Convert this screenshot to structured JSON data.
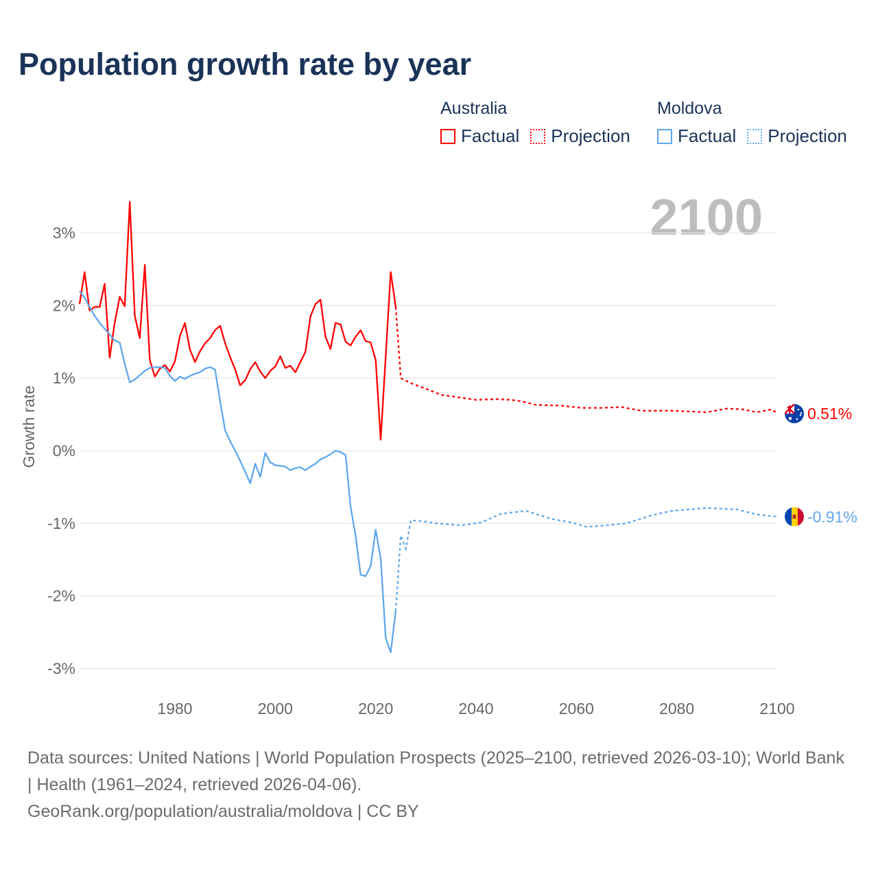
{
  "chart_data": {
    "type": "line",
    "title": "Population growth rate by year",
    "ylabel": "Growth rate",
    "xlabel": "",
    "xlim": [
      1961,
      2100
    ],
    "ylim": [
      -3.4,
      3.5
    ],
    "grid": true,
    "current_year_label": "2100",
    "x_ticks": [
      1980,
      2000,
      2020,
      2040,
      2060,
      2080,
      2100
    ],
    "x_tick_labels": [
      "1980",
      "2000",
      "2020",
      "2040",
      "2060",
      "2080",
      "2100"
    ],
    "y_ticks": [
      3,
      2,
      1,
      0,
      -1,
      -2,
      -3
    ],
    "y_tick_labels": [
      "3%",
      "2%",
      "1%",
      "0%",
      "-1%",
      "-2%",
      "-3%"
    ],
    "legend": {
      "placement": "top-right",
      "groups": [
        {
          "country": "Australia",
          "factual": "Factual",
          "projection": "Projection"
        },
        {
          "country": "Moldova",
          "factual": "Factual",
          "projection": "Projection"
        }
      ]
    },
    "series": [
      {
        "name": "Australia",
        "color": "#ff0000",
        "end_label": "0.51%",
        "factual_start_year": 1961,
        "factual": [
          2.02,
          2.46,
          1.93,
          1.98,
          1.98,
          2.3,
          1.28,
          1.76,
          2.12,
          1.99,
          3.43,
          1.86,
          1.55,
          2.56,
          1.25,
          1.02,
          1.13,
          1.18,
          1.09,
          1.23,
          1.58,
          1.76,
          1.39,
          1.22,
          1.37,
          1.48,
          1.55,
          1.66,
          1.72,
          1.48,
          1.29,
          1.12,
          0.9,
          0.97,
          1.12,
          1.22,
          1.09,
          1.0,
          1.1,
          1.16,
          1.3,
          1.14,
          1.17,
          1.08,
          1.22,
          1.36,
          1.85,
          2.02,
          2.08,
          1.57,
          1.4,
          1.76,
          1.74,
          1.5,
          1.45,
          1.57,
          1.66,
          1.51,
          1.49,
          1.25,
          0.15,
          1.3,
          2.46,
          1.98
        ],
        "projection": [
          [
            2024,
            1.98
          ],
          [
            2025,
            1.0
          ],
          [
            2027,
            0.93
          ],
          [
            2029,
            0.88
          ],
          [
            2033,
            0.77
          ],
          [
            2037,
            0.73
          ],
          [
            2040,
            0.7
          ],
          [
            2044,
            0.71
          ],
          [
            2047,
            0.7
          ],
          [
            2049,
            0.68
          ],
          [
            2052,
            0.63
          ],
          [
            2057,
            0.62
          ],
          [
            2061,
            0.59
          ],
          [
            2065,
            0.59
          ],
          [
            2069,
            0.6
          ],
          [
            2073,
            0.55
          ],
          [
            2079,
            0.55
          ],
          [
            2086,
            0.53
          ],
          [
            2090,
            0.58
          ],
          [
            2093,
            0.57
          ],
          [
            2096,
            0.53
          ],
          [
            2099,
            0.57
          ],
          [
            2100,
            0.51
          ]
        ]
      },
      {
        "name": "Moldova",
        "color": "#5ea7ec",
        "end_label": "-0.91%",
        "factual_start_year": 1961,
        "factual": [
          2.2,
          2.11,
          1.98,
          1.86,
          1.76,
          1.68,
          1.6,
          1.52,
          1.49,
          1.2,
          0.94,
          0.98,
          1.04,
          1.1,
          1.14,
          1.15,
          1.15,
          1.14,
          1.03,
          0.96,
          1.02,
          0.99,
          1.03,
          1.06,
          1.08,
          1.13,
          1.15,
          1.12,
          0.68,
          0.28,
          0.13,
          0.0,
          -0.14,
          -0.29,
          -0.45,
          -0.18,
          -0.36,
          -0.03,
          -0.16,
          -0.2,
          -0.21,
          -0.22,
          -0.27,
          -0.24,
          -0.23,
          -0.27,
          -0.22,
          -0.18,
          -0.12,
          -0.09,
          -0.05,
          0.0,
          -0.02,
          -0.06,
          -0.77,
          -1.17,
          -1.71,
          -1.73,
          -1.59,
          -1.09,
          -1.48,
          -2.58,
          -2.78,
          -2.21
        ],
        "projection": [
          [
            2024,
            -2.21
          ],
          [
            2025,
            -1.17
          ],
          [
            2026,
            -1.35
          ],
          [
            2027,
            -0.96
          ],
          [
            2029,
            -0.97
          ],
          [
            2032,
            -1.0
          ],
          [
            2037,
            -1.03
          ],
          [
            2041,
            -0.99
          ],
          [
            2045,
            -0.87
          ],
          [
            2050,
            -0.83
          ],
          [
            2055,
            -0.94
          ],
          [
            2059,
            -0.99
          ],
          [
            2062,
            -1.05
          ],
          [
            2066,
            -1.03
          ],
          [
            2070,
            -1.0
          ],
          [
            2075,
            -0.89
          ],
          [
            2079,
            -0.83
          ],
          [
            2086,
            -0.79
          ],
          [
            2092,
            -0.81
          ],
          [
            2096,
            -0.88
          ],
          [
            2100,
            -0.91
          ]
        ]
      }
    ]
  },
  "footer": {
    "sources": "Data sources: United Nations | World Population Prospects (2025–2100, retrieved 2026-03-10); World Bank | Health (1961–2024, retrieved 2026-04-06).",
    "attribution": "GeoRank.org/population/australia/moldova | CC BY"
  }
}
